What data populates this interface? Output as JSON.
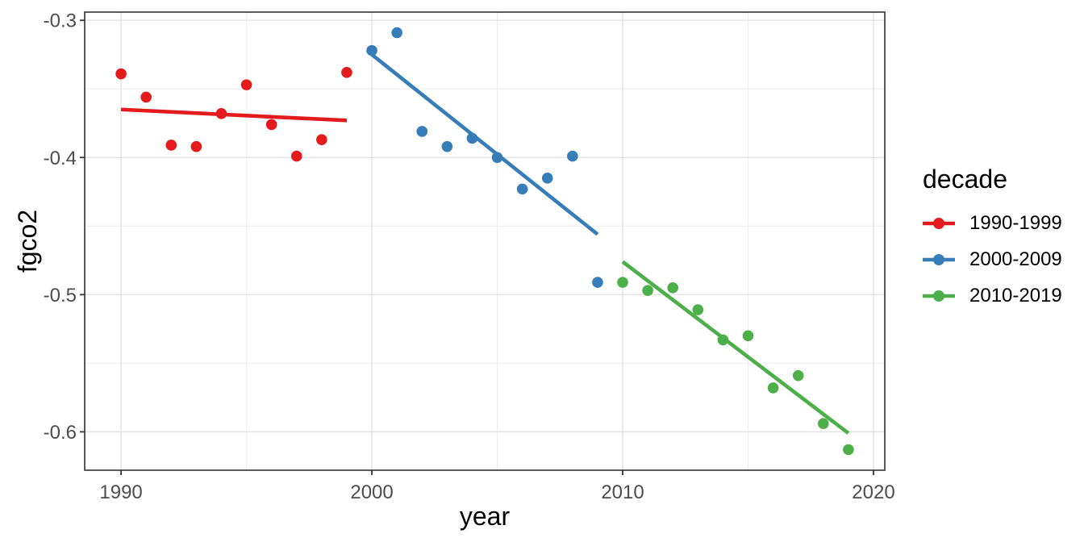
{
  "figure": {
    "background_color": "#ffffff",
    "panel_border_color": "#333333",
    "grid_major_color": "#e3e3e3",
    "grid_minor_color": "#eeeeee",
    "tick_label_color": "#4d4d4d"
  },
  "chart_data": {
    "type": "scatter",
    "title": "",
    "xlabel": "year",
    "ylabel": "fgco2",
    "xlim": [
      1988.55,
      2020.45
    ],
    "ylim": [
      -0.628,
      -0.294
    ],
    "x_ticks": [
      1990,
      2000,
      2010,
      2020
    ],
    "x_minor_ticks": [
      1995,
      2005,
      2015
    ],
    "y_ticks": [
      -0.3,
      -0.4,
      -0.5,
      -0.6
    ],
    "y_minor_ticks": [
      -0.35,
      -0.45,
      -0.55
    ],
    "grid": true,
    "legend": {
      "title": "decade",
      "position": "right"
    },
    "series": [
      {
        "name": "1990-1999",
        "color": "#E41A1C",
        "x": [
          1990,
          1991,
          1992,
          1993,
          1994,
          1995,
          1996,
          1997,
          1998,
          1999
        ],
        "y": [
          -0.339,
          -0.356,
          -0.391,
          -0.392,
          -0.368,
          -0.347,
          -0.376,
          -0.399,
          -0.387,
          -0.338
        ],
        "trend": {
          "x": [
            1990,
            1999
          ],
          "y": [
            -0.365,
            -0.373
          ]
        }
      },
      {
        "name": "2000-2009",
        "color": "#377EB8",
        "x": [
          2000,
          2001,
          2002,
          2003,
          2004,
          2005,
          2006,
          2007,
          2008,
          2009
        ],
        "y": [
          -0.322,
          -0.309,
          -0.381,
          -0.392,
          -0.386,
          -0.4,
          -0.423,
          -0.415,
          -0.399,
          -0.491
        ],
        "trend": {
          "x": [
            2000,
            2009
          ],
          "y": [
            -0.325,
            -0.456
          ]
        }
      },
      {
        "name": "2010-2019",
        "color": "#4DAF4A",
        "x": [
          2010,
          2011,
          2012,
          2013,
          2014,
          2015,
          2016,
          2017,
          2018,
          2019
        ],
        "y": [
          -0.491,
          -0.497,
          -0.495,
          -0.511,
          -0.533,
          -0.53,
          -0.568,
          -0.559,
          -0.594,
          -0.613
        ],
        "trend": {
          "x": [
            2010,
            2019
          ],
          "y": [
            -0.476,
            -0.601
          ]
        }
      }
    ]
  }
}
